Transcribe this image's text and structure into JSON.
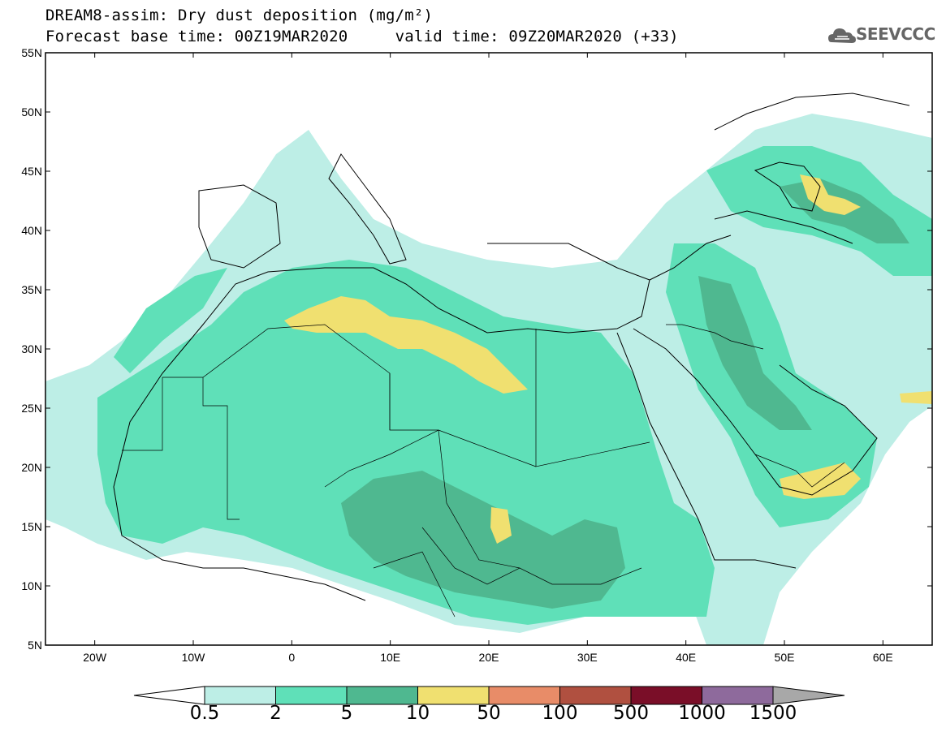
{
  "title": {
    "line1": "DREAM8-assim: Dry dust deposition (mg/m²)",
    "line2_base": "Forecast base time: 00Z19MAR2020",
    "line2_valid": "valid time: 09Z20MAR2020 (+33)"
  },
  "logo": {
    "text": "SEEVCCC",
    "icon": "cloud-icon"
  },
  "map": {
    "lon_range": [
      -25,
      65
    ],
    "lat_range": [
      5,
      55
    ],
    "lat_ticks": [
      "55N",
      "50N",
      "45N",
      "40N",
      "35N",
      "30N",
      "25N",
      "20N",
      "15N",
      "10N",
      "5N"
    ],
    "lon_ticks": [
      "20W",
      "10W",
      "0",
      "10E",
      "20E",
      "30E",
      "40E",
      "50E",
      "60E"
    ]
  },
  "legend": {
    "levels": [
      "0.5",
      "2",
      "5",
      "10",
      "50",
      "100",
      "500",
      "1000",
      "1500"
    ],
    "colors": [
      "#bdeee6",
      "#5fe0b8",
      "#4fb890",
      "#f0e070",
      "#e88c68",
      "#b05040",
      "#7a0e28",
      "#8e6a9c",
      "#a8a8a8"
    ]
  }
}
